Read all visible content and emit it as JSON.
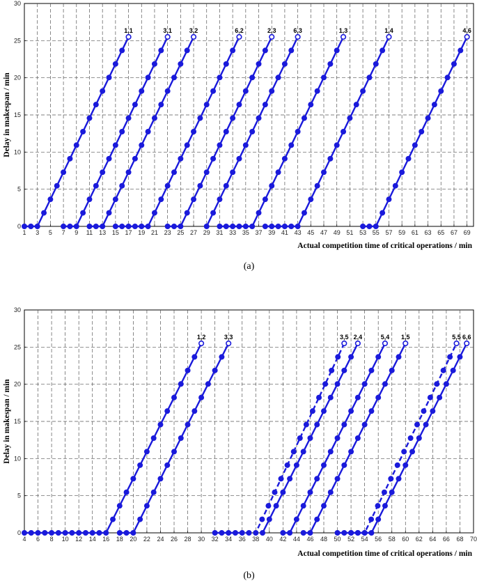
{
  "chart_data": [
    {
      "panel": "a",
      "type": "line",
      "caption": "(a)",
      "xlabel": "Actual competition time of critical operations / min",
      "ylabel": "Delay in makespan / min",
      "xlim": [
        1,
        70
      ],
      "ylim": [
        0,
        30
      ],
      "x_ticks": [
        1,
        3,
        5,
        7,
        9,
        11,
        13,
        15,
        17,
        19,
        21,
        23,
        25,
        27,
        29,
        31,
        33,
        35,
        37,
        39,
        41,
        43,
        45,
        47,
        49,
        51,
        53,
        55,
        57,
        59,
        61,
        63,
        65,
        67,
        69
      ],
      "y_ticks": [
        0,
        5,
        10,
        15,
        20,
        25,
        30
      ],
      "grid": true,
      "series": [
        {
          "name": "1,1",
          "style": "solid",
          "zero_from": 1,
          "start": 3,
          "end": 17
        },
        {
          "name": "3,1",
          "style": "solid",
          "zero_from": 7,
          "start": 9,
          "end": 23
        },
        {
          "name": "3,2",
          "style": "solid",
          "zero_from": 11,
          "start": 13,
          "end": 27
        },
        {
          "name": "6,2",
          "style": "solid",
          "zero_from": 15,
          "start": 20,
          "end": 34
        },
        {
          "name": "2,3",
          "style": "solid",
          "zero_from": 23,
          "start": 25,
          "end": 39
        },
        {
          "name": "6,3",
          "style": "solid",
          "zero_from": 29,
          "start": 29,
          "end": 43
        },
        {
          "name": "1,3",
          "style": "solid",
          "zero_from": 31,
          "start": 36,
          "end": 50
        },
        {
          "name": "1,4",
          "style": "solid",
          "zero_from": 38,
          "start": 43,
          "end": 57
        },
        {
          "name": "4,6",
          "style": "solid",
          "zero_from": 53,
          "start": 55,
          "end": 69
        }
      ]
    },
    {
      "panel": "b",
      "type": "line",
      "caption": "(b)",
      "xlabel": "Actual competition time of critical operations / min",
      "ylabel": "Delay in makespan / min",
      "xlim": [
        4,
        70
      ],
      "ylim": [
        0,
        30
      ],
      "x_ticks": [
        4,
        6,
        8,
        10,
        12,
        14,
        16,
        18,
        20,
        22,
        24,
        26,
        28,
        30,
        32,
        34,
        36,
        38,
        40,
        42,
        44,
        46,
        48,
        50,
        52,
        54,
        56,
        58,
        60,
        62,
        64,
        66,
        68,
        70
      ],
      "y_ticks": [
        0,
        5,
        10,
        15,
        20,
        25,
        30
      ],
      "grid": true,
      "series": [
        {
          "name": "1,2",
          "style": "solid",
          "zero_from": 4,
          "start": 16,
          "end": 30
        },
        {
          "name": "3,3",
          "style": "solid",
          "zero_from": 18,
          "start": 20,
          "end": 34
        },
        {
          "name": "3,5",
          "style": "dashed",
          "zero_from": 32,
          "start": 38,
          "end": 51
        },
        {
          "name": "2,4",
          "style": "solid",
          "zero_from": 39,
          "start": 39,
          "end": 53
        },
        {
          "name": "5,4",
          "style": "solid",
          "zero_from": 42,
          "start": 43,
          "end": 57
        },
        {
          "name": "1,5",
          "style": "solid",
          "zero_from": 45,
          "start": 46,
          "end": 60
        },
        {
          "name": "5,5",
          "style": "dashed",
          "zero_from": 50,
          "start": 54,
          "end": 67.5
        },
        {
          "name": "6,6",
          "style": "solid",
          "zero_from": 52,
          "start": 55,
          "end": 69
        }
      ]
    }
  ],
  "style": {
    "line_color": "#1a1adb",
    "grid_color": "#555555"
  },
  "y_max_delay": 25.5
}
